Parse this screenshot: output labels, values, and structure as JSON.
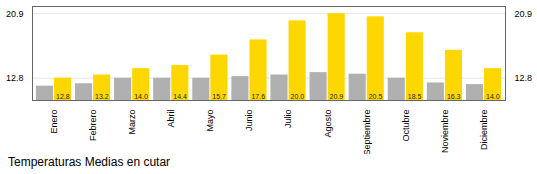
{
  "chart_data": {
    "type": "bar",
    "title": "Temperaturas Medias en cutar",
    "categories": [
      "Enero",
      "Febrero",
      "Marzo",
      "Abril",
      "Mayo",
      "Junio",
      "Julio",
      "Agosto",
      "Septiembre",
      "Octubre",
      "Noviembre",
      "Diciembre"
    ],
    "series": [
      {
        "color": "#B0B0B0",
        "values": [
          11.8,
          12.1,
          12.8,
          12.8,
          12.8,
          13.0,
          13.2,
          13.5,
          13.3,
          12.8,
          12.2,
          12.0
        ]
      },
      {
        "color": "#FFD700",
        "values": [
          12.8,
          13.2,
          14.0,
          14.4,
          15.7,
          17.6,
          20.0,
          20.9,
          20.5,
          18.5,
          16.3,
          14.0
        ],
        "data_labels": true,
        "value_labels": [
          "12.8",
          "13.2",
          "14.0",
          "14.4",
          "15.7",
          "17.6",
          "20.0",
          "20.9",
          "20.5",
          "18.5",
          "16.3",
          "14.0"
        ]
      }
    ],
    "ylim": [
      10,
      21.8
    ],
    "yticks": [
      12.8,
      20.9
    ],
    "grid": true
  }
}
